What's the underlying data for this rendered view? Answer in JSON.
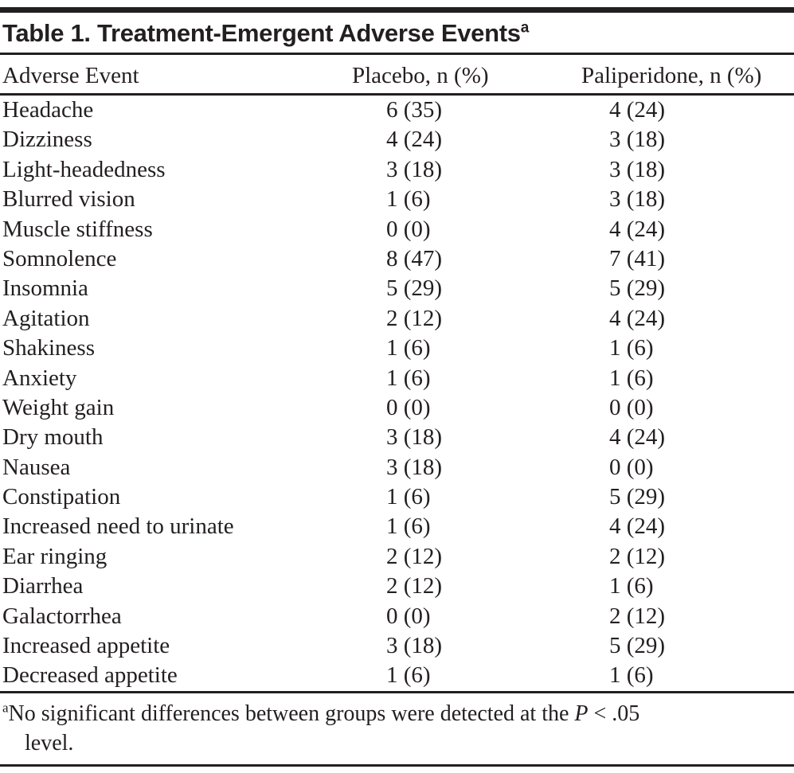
{
  "page": {
    "background": "#ffffff",
    "text_color": "#231f20",
    "rule_color": "#231f20"
  },
  "table": {
    "title": "Table 1. Treatment-Emergent Adverse Events",
    "title_marker": "a",
    "columns": [
      "Adverse Event",
      "Placebo, n (%)",
      "Paliperidone, n (%)"
    ],
    "rows": [
      [
        "Headache",
        "6 (35)",
        "4 (24)"
      ],
      [
        "Dizziness",
        "4 (24)",
        "3 (18)"
      ],
      [
        "Light-headedness",
        "3 (18)",
        "3 (18)"
      ],
      [
        "Blurred vision",
        "1 (6)",
        "3 (18)"
      ],
      [
        "Muscle stiffness",
        "0 (0)",
        "4 (24)"
      ],
      [
        "Somnolence",
        "8 (47)",
        "7 (41)"
      ],
      [
        "Insomnia",
        "5 (29)",
        "5 (29)"
      ],
      [
        "Agitation",
        "2 (12)",
        "4 (24)"
      ],
      [
        "Shakiness",
        "1 (6)",
        "1 (6)"
      ],
      [
        "Anxiety",
        "1 (6)",
        "1 (6)"
      ],
      [
        "Weight gain",
        "0 (0)",
        "0 (0)"
      ],
      [
        "Dry mouth",
        "3 (18)",
        "4 (24)"
      ],
      [
        "Nausea",
        "3 (18)",
        "0 (0)"
      ],
      [
        "Constipation",
        "1 (6)",
        "5 (29)"
      ],
      [
        "Increased need to urinate",
        "1 (6)",
        "4 (24)"
      ],
      [
        "Ear ringing",
        "2 (12)",
        "2 (12)"
      ],
      [
        "Diarrhea",
        "2 (12)",
        "1 (6)"
      ],
      [
        "Galactorrhea",
        "0 (0)",
        "2 (12)"
      ],
      [
        "Increased appetite",
        "3 (18)",
        "5 (29)"
      ],
      [
        "Decreased appetite",
        "1 (6)",
        "1 (6)"
      ]
    ],
    "footnote": {
      "marker": "a",
      "line1_before_p": "No significant differences between groups were detected at the ",
      "p_italic": "P",
      "line1_after_p": " < .05",
      "line2": "level."
    }
  }
}
